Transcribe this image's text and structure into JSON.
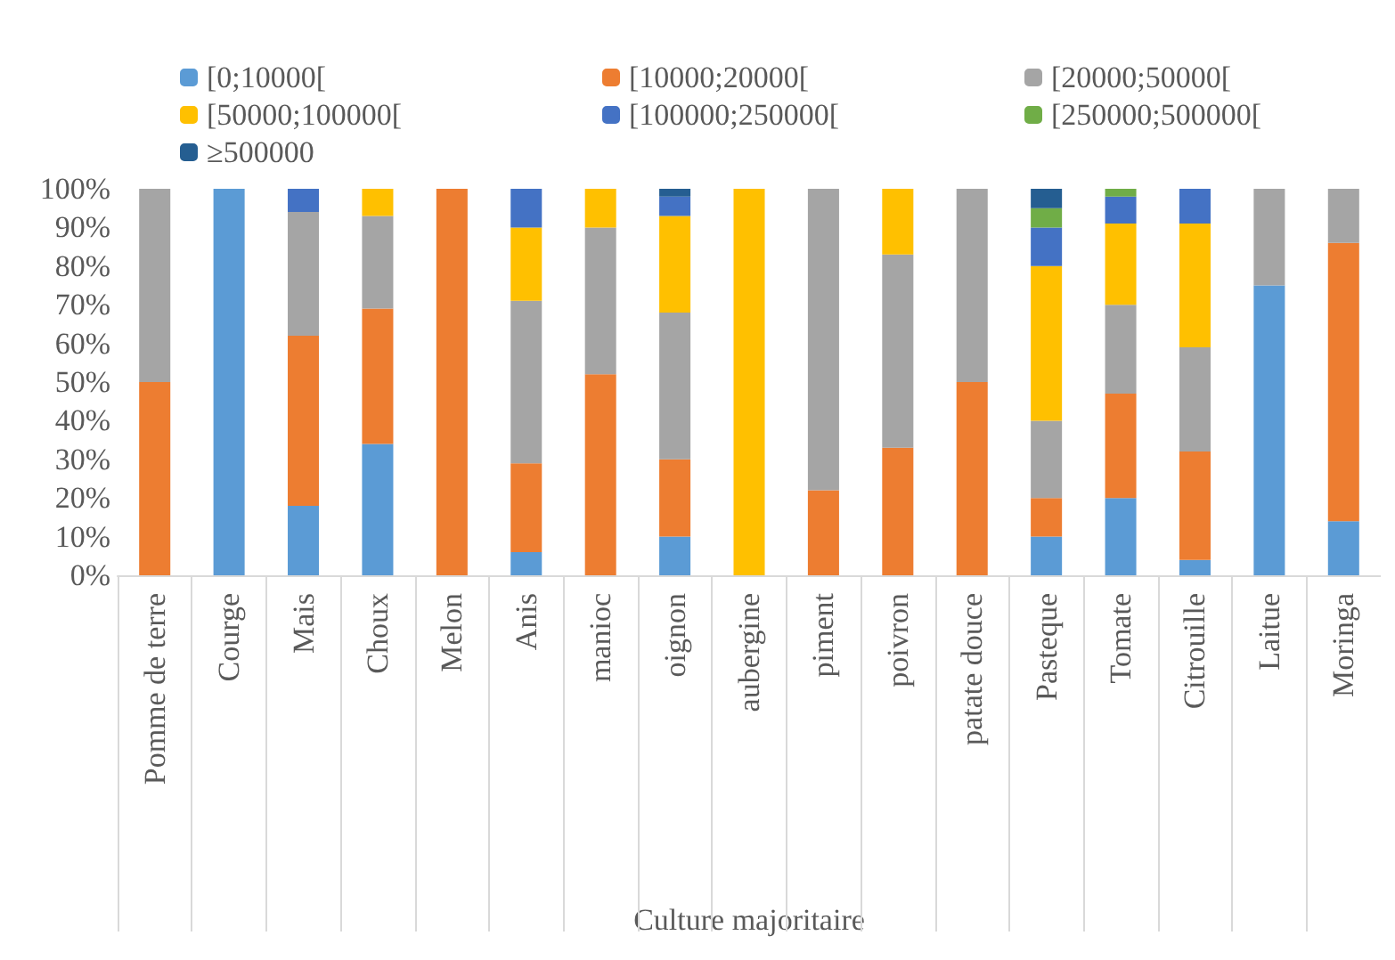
{
  "chart_data": {
    "type": "bar",
    "stacked": true,
    "xlabel": "Culture majoritaire",
    "legend": "top",
    "grid": false,
    "categories": [
      "Pomme de terre",
      "Courge",
      "Mais",
      "Choux",
      "Melon",
      "Anis",
      "manioc",
      "oignon",
      "aubergine",
      "piment",
      "poivron",
      "patate douce",
      "Pasteque",
      "Tomate",
      "Citrouille",
      "Laitue",
      "Moringa"
    ],
    "ylim": [
      0,
      100
    ],
    "yticks": [
      {
        "value": 0,
        "label": "0%"
      },
      {
        "value": 10,
        "label": "10%"
      },
      {
        "value": 20,
        "label": "20%"
      },
      {
        "value": 30,
        "label": "30%"
      },
      {
        "value": 40,
        "label": "40%"
      },
      {
        "value": 50,
        "label": "50%"
      },
      {
        "value": 60,
        "label": "60%"
      },
      {
        "value": 70,
        "label": "70%"
      },
      {
        "value": 80,
        "label": "80%"
      },
      {
        "value": 90,
        "label": "90%"
      },
      {
        "value": 100,
        "label": "100%"
      }
    ],
    "series": [
      {
        "name": "[0;10000[",
        "color": "#5b9bd5",
        "values": [
          null,
          100,
          18,
          34,
          null,
          6,
          null,
          10,
          null,
          null,
          null,
          null,
          10,
          20,
          4,
          75,
          14
        ]
      },
      {
        "name": "[10000;20000[",
        "color": "#ed7d31",
        "values": [
          50,
          null,
          44,
          35,
          100,
          23,
          52,
          20,
          null,
          22,
          33,
          50,
          10,
          27,
          28,
          null,
          72
        ]
      },
      {
        "name": "[20000;50000[",
        "color": "#a5a5a5",
        "values": [
          50,
          null,
          32,
          24,
          null,
          42,
          38,
          38,
          null,
          78,
          50,
          50,
          20,
          23,
          27,
          25,
          14
        ]
      },
      {
        "name": "[50000;100000[",
        "color": "#ffc000",
        "values": [
          null,
          null,
          null,
          7,
          null,
          19,
          10,
          25,
          100,
          null,
          17,
          null,
          40,
          21,
          32,
          null,
          null
        ]
      },
      {
        "name": "[100000;250000[",
        "color": "#4472c4",
        "values": [
          null,
          null,
          6,
          null,
          null,
          10,
          null,
          5,
          null,
          null,
          null,
          null,
          10,
          7,
          9,
          null,
          null
        ]
      },
      {
        "name": "[250000;500000[",
        "color": "#70ad47",
        "values": [
          null,
          null,
          null,
          null,
          null,
          null,
          null,
          null,
          null,
          null,
          null,
          null,
          5,
          2,
          null,
          null,
          null
        ]
      },
      {
        "name": "≥500000",
        "color": "#255e91",
        "values": [
          null,
          null,
          null,
          null,
          null,
          null,
          null,
          2,
          null,
          null,
          null,
          null,
          5,
          null,
          null,
          null,
          null
        ]
      }
    ]
  }
}
